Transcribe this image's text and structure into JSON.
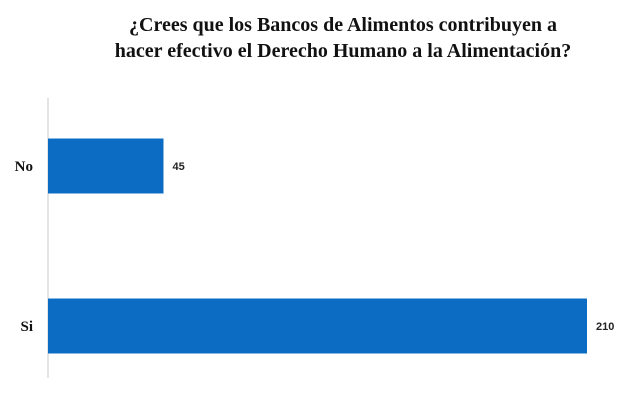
{
  "chart_data": {
    "type": "bar",
    "orientation": "horizontal",
    "title_lines": [
      "¿Crees que los Bancos de Alimentos contribuyen a",
      "hacer efectivo el Derecho Humano a la Alimentación?"
    ],
    "categories": [
      "No",
      "Si"
    ],
    "values": [
      45,
      210
    ],
    "value_labels": [
      "45",
      "210"
    ],
    "xlim": [
      0,
      210
    ],
    "grid": false,
    "legend": "none",
    "bar_color": "#0c6cc4",
    "axis_color": "#c8c8c8"
  }
}
